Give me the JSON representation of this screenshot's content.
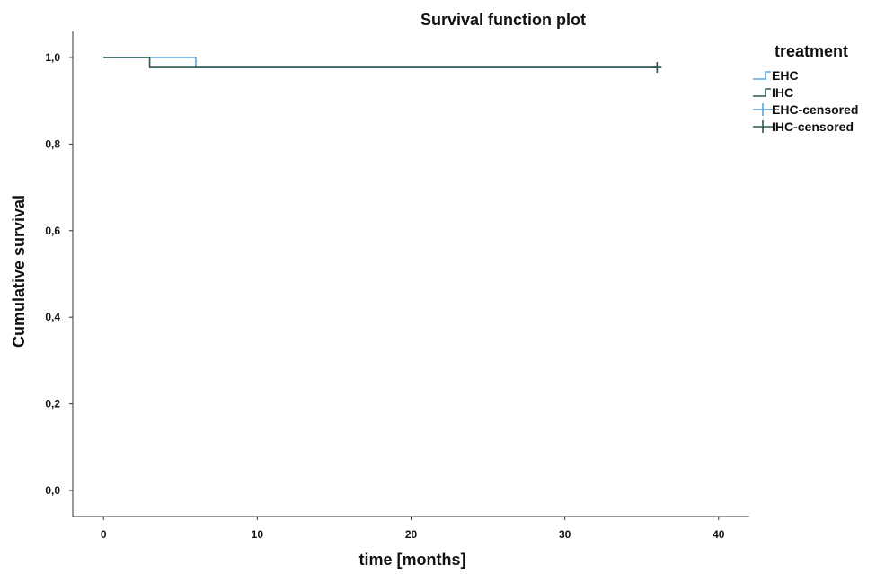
{
  "chart_data": {
    "type": "line",
    "title": "Survival function plot",
    "xlabel": "time [months]",
    "ylabel": "Cumulative survival",
    "xlim": [
      -2,
      42
    ],
    "ylim": [
      -0.06,
      1.06
    ],
    "x_ticks": [
      0,
      10,
      20,
      30,
      40
    ],
    "x_tick_labels": [
      "0",
      "10",
      "20",
      "30",
      "40"
    ],
    "y_ticks": [
      0.0,
      0.2,
      0.4,
      0.6,
      0.8,
      1.0
    ],
    "y_tick_labels": [
      "0,0",
      "0,2",
      "0,4",
      "0,6",
      "0,8",
      "1,0"
    ],
    "grid": false,
    "legend_position": "right",
    "legend_title": "treatment",
    "legend": [
      {
        "label": "EHC",
        "marker": "step",
        "color": "#5aa6e0"
      },
      {
        "label": "IHC",
        "marker": "step",
        "color": "#2f5a52"
      },
      {
        "label": "EHC-censored",
        "marker": "cross",
        "color": "#5aa6e0"
      },
      {
        "label": "IHC-censored",
        "marker": "cross",
        "color": "#2f5a52"
      }
    ],
    "series": [
      {
        "name": "EHC",
        "color": "#5aa6e0",
        "x": [
          0,
          6,
          36
        ],
        "y": [
          1.0,
          0.977,
          0.977
        ],
        "censored": [
          {
            "x": 36,
            "y": 0.977
          }
        ]
      },
      {
        "name": "IHC",
        "color": "#2f5a52",
        "x": [
          0,
          3,
          36
        ],
        "y": [
          1.0,
          0.977,
          0.977
        ],
        "censored": [
          {
            "x": 36,
            "y": 0.977
          }
        ]
      }
    ]
  }
}
